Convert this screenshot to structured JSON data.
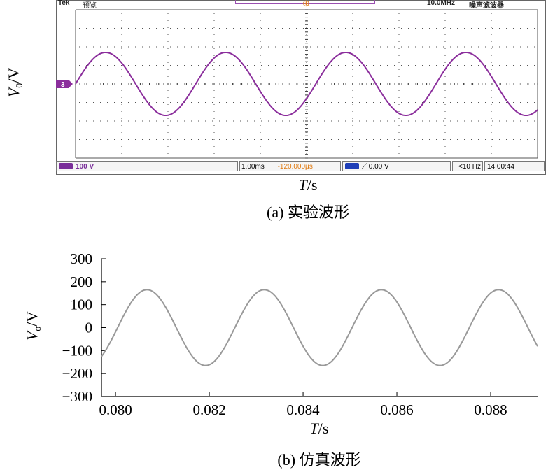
{
  "scope": {
    "brand": "Tek",
    "mode": "预览",
    "bandwidth": "10.0MHz",
    "status_right": "噪声滤波器",
    "ch_scale": "100 V",
    "timebase": "1.00ms",
    "trigger_pos": "-120.000μs",
    "trigger_level": "0.00 V",
    "frequency": "<10 Hz",
    "time": "14:00:44",
    "ch_marker": "3",
    "trace_color": "#8b2e9c",
    "chip_color_1": "#7a2f9a",
    "chip_color_2": "#1f3fb8",
    "accent_orange": "#e07a10"
  },
  "labels": {
    "y_var": "V",
    "y_sub_a": "0",
    "y_sub_b": "o",
    "y_unit": "/V",
    "x_var": "T",
    "x_unit": "/s",
    "caption_a": "(a) 实验波形",
    "caption_b": "(b) 仿真波形"
  },
  "chart_data": [
    {
      "type": "line",
      "title": "(a) 实验波形",
      "xlabel": "T/s",
      "ylabel": "V0/V",
      "ylim_divisions": [
        -4,
        4
      ],
      "xlim_divisions": [
        0,
        10
      ],
      "series": [
        {
          "amplitude_divisions": 1.7,
          "period_divisions": 2.6,
          "x_start_divisions": 0
        }
      ],
      "grid": true
    },
    {
      "type": "line",
      "title": "(b) 仿真波形",
      "xlabel": "T/s",
      "ylabel": "Vo/V",
      "xlim": [
        0.0797,
        0.089
      ],
      "ylim": [
        -300,
        300
      ],
      "xticks": [
        0.08,
        0.082,
        0.084,
        0.086,
        0.088
      ],
      "xtick_labels": [
        "0.080",
        "0.082",
        "0.084",
        "0.086",
        "0.088"
      ],
      "yticks": [
        300,
        200,
        100,
        0,
        -100,
        -200,
        -300
      ],
      "ytick_labels": [
        "300",
        "200",
        "100",
        "0",
        "−100",
        "−200",
        "−300"
      ],
      "series": [
        {
          "amplitude": 165,
          "period": 0.0025,
          "peak_time": 0.08067,
          "color": "#999999"
        }
      ],
      "grid": false
    }
  ]
}
